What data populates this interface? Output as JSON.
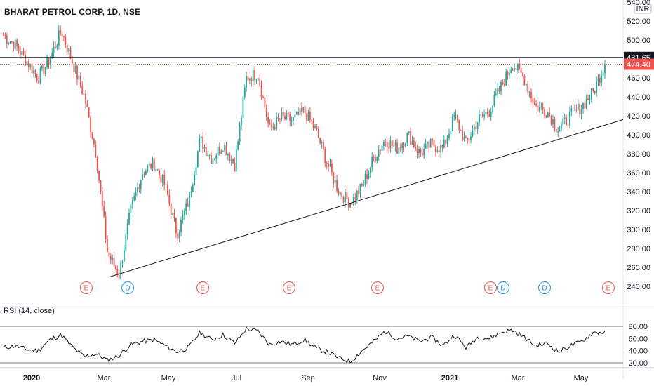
{
  "header": {
    "title": "BHARAT PETROL CORP, 1D, NSE",
    "currency": "INR"
  },
  "colors": {
    "up": "#26a69a",
    "down": "#ef5350",
    "resistance_line": "#131722",
    "trend_line": "#131722",
    "last_price_line": "#ef5350",
    "earnings": "#ef5350",
    "dividend": "#2196f3",
    "rsi_line": "#131722"
  },
  "chart_data": [
    {
      "type": "candlestick",
      "series_name": "BHARAT PETROL CORP",
      "x_ticks": [
        "2020",
        "Mar",
        "May",
        "Jul",
        "Sep",
        "Nov",
        "2021",
        "Mar",
        "May"
      ],
      "y_ticks": [
        "240.00",
        "260.00",
        "280.00",
        "300.00",
        "320.00",
        "340.00",
        "360.00",
        "380.00",
        "400.00",
        "420.00",
        "440.00",
        "460.00",
        "480.00",
        "500.00",
        "520.00",
        "540.00"
      ],
      "ylim": [
        233,
        541
      ],
      "ohlc_keypoints": [
        {
          "date": "Dec 2019",
          "close": 505
        },
        {
          "date": "early Jan 2020",
          "close": 495
        },
        {
          "date": "mid Jan 2020",
          "close": 478
        },
        {
          "date": "late Jan 2020",
          "close": 460
        },
        {
          "date": "early Feb 2020",
          "close": 480
        },
        {
          "date": "mid Feb 2020",
          "close": 510
        },
        {
          "date": "late Feb 2020",
          "close": 475
        },
        {
          "date": "early Mar 2020",
          "close": 440
        },
        {
          "date": "mid Mar 2020",
          "close": 380
        },
        {
          "date": "late Mar 2020",
          "close": 275
        },
        {
          "date": "end Mar 2020",
          "close": 252
        },
        {
          "date": "early Apr 2020",
          "close": 320
        },
        {
          "date": "mid Apr 2020",
          "close": 360
        },
        {
          "date": "late Apr 2020",
          "close": 370
        },
        {
          "date": "early May 2020",
          "close": 345
        },
        {
          "date": "mid May 2020",
          "close": 295
        },
        {
          "date": "late May 2020",
          "close": 330
        },
        {
          "date": "early Jun 2020",
          "close": 395
        },
        {
          "date": "mid Jun 2020",
          "close": 375
        },
        {
          "date": "late Jun 2020",
          "close": 390
        },
        {
          "date": "early Jul 2020",
          "close": 368
        },
        {
          "date": "mid Jul 2020",
          "close": 460
        },
        {
          "date": "late Jul 2020",
          "close": 465
        },
        {
          "date": "early Aug 2020",
          "close": 405
        },
        {
          "date": "mid Aug 2020",
          "close": 418
        },
        {
          "date": "late Aug 2020",
          "close": 415
        },
        {
          "date": "early Sep 2020",
          "close": 425
        },
        {
          "date": "mid Sep 2020",
          "close": 405
        },
        {
          "date": "late Sep 2020",
          "close": 370
        },
        {
          "date": "early Oct 2020",
          "close": 340
        },
        {
          "date": "mid Oct 2020",
          "close": 328
        },
        {
          "date": "late Oct 2020",
          "close": 345
        },
        {
          "date": "early Nov 2020",
          "close": 375
        },
        {
          "date": "mid Nov 2020",
          "close": 395
        },
        {
          "date": "late Nov 2020",
          "close": 385
        },
        {
          "date": "early Dec 2020",
          "close": 400
        },
        {
          "date": "mid Dec 2020",
          "close": 380
        },
        {
          "date": "late Dec 2020",
          "close": 390
        },
        {
          "date": "early Jan 2021",
          "close": 385
        },
        {
          "date": "mid Jan 2021",
          "close": 420
        },
        {
          "date": "late Jan 2021",
          "close": 390
        },
        {
          "date": "early Feb 2021",
          "close": 415
        },
        {
          "date": "mid Feb 2021",
          "close": 425
        },
        {
          "date": "late Feb 2021",
          "close": 450
        },
        {
          "date": "early Mar 2021",
          "close": 475
        },
        {
          "date": "mid Mar 2021",
          "close": 460
        },
        {
          "date": "late Mar 2021",
          "close": 430
        },
        {
          "date": "early Apr 2021",
          "close": 425
        },
        {
          "date": "mid Apr 2021",
          "close": 405
        },
        {
          "date": "late Apr 2021",
          "close": 420
        },
        {
          "date": "early May 2021",
          "close": 430
        },
        {
          "date": "mid May 2021",
          "close": 445
        },
        {
          "date": "late May 2021",
          "close": 474.4
        }
      ],
      "last_price": 474.4,
      "last_price_label": "474.40",
      "resistance_level": 481.65,
      "resistance_label": "481.65",
      "trendline": [
        {
          "date": "end Mar 2020",
          "value": 250
        },
        {
          "date": "late May 2021",
          "value": 416
        }
      ],
      "events": [
        {
          "date": "mid Feb 2020",
          "label": "E"
        },
        {
          "date": "end Mar 2020",
          "label": "D"
        },
        {
          "date": "late May 2020",
          "label": "E"
        },
        {
          "date": "mid Aug 2020",
          "label": "E"
        },
        {
          "date": "early Nov 2020",
          "label": "E"
        },
        {
          "date": "mid Feb 2021",
          "label": "E"
        },
        {
          "date": "late Feb 2021",
          "label": "D"
        },
        {
          "date": "mid Apr 2021",
          "label": "D"
        },
        {
          "date": "late May 2021",
          "label": "E"
        }
      ],
      "grid": false
    },
    {
      "type": "line",
      "title": "RSI (14, close)",
      "y_ticks": [
        "20.00",
        "40.00",
        "60.00",
        "80.00"
      ],
      "ylim": [
        14,
        86
      ],
      "bands": [
        20,
        80
      ],
      "rsi_keypoints": [
        {
          "date": "Dec 2019",
          "value": 45
        },
        {
          "date": "early Jan 2020",
          "value": 48
        },
        {
          "date": "mid Jan 2020",
          "value": 42
        },
        {
          "date": "late Jan 2020",
          "value": 40
        },
        {
          "date": "early Feb 2020",
          "value": 58
        },
        {
          "date": "mid Feb 2020",
          "value": 66
        },
        {
          "date": "late Feb 2020",
          "value": 45
        },
        {
          "date": "early Mar 2020",
          "value": 30
        },
        {
          "date": "mid Mar 2020",
          "value": 35
        },
        {
          "date": "late Mar 2020",
          "value": 24
        },
        {
          "date": "end Mar 2020",
          "value": 32
        },
        {
          "date": "early Apr 2020",
          "value": 50
        },
        {
          "date": "mid Apr 2020",
          "value": 55
        },
        {
          "date": "late Apr 2020",
          "value": 58
        },
        {
          "date": "early May 2020",
          "value": 48
        },
        {
          "date": "mid May 2020",
          "value": 38
        },
        {
          "date": "late May 2020",
          "value": 45
        },
        {
          "date": "early Jun 2020",
          "value": 70
        },
        {
          "date": "mid Jun 2020",
          "value": 58
        },
        {
          "date": "late Jun 2020",
          "value": 66
        },
        {
          "date": "early Jul 2020",
          "value": 52
        },
        {
          "date": "mid Jul 2020",
          "value": 76
        },
        {
          "date": "late Jul 2020",
          "value": 72
        },
        {
          "date": "early Aug 2020",
          "value": 50
        },
        {
          "date": "mid Aug 2020",
          "value": 55
        },
        {
          "date": "late Aug 2020",
          "value": 50
        },
        {
          "date": "early Sep 2020",
          "value": 58
        },
        {
          "date": "mid Sep 2020",
          "value": 44
        },
        {
          "date": "late Sep 2020",
          "value": 38
        },
        {
          "date": "early Oct 2020",
          "value": 28
        },
        {
          "date": "mid Oct 2020",
          "value": 22
        },
        {
          "date": "late Oct 2020",
          "value": 40
        },
        {
          "date": "early Nov 2020",
          "value": 55
        },
        {
          "date": "mid Nov 2020",
          "value": 72
        },
        {
          "date": "late Nov 2020",
          "value": 60
        },
        {
          "date": "early Dec 2020",
          "value": 64
        },
        {
          "date": "mid Dec 2020",
          "value": 55
        },
        {
          "date": "late Dec 2020",
          "value": 62
        },
        {
          "date": "early Jan 2021",
          "value": 48
        },
        {
          "date": "mid Jan 2021",
          "value": 66
        },
        {
          "date": "late Jan 2021",
          "value": 45
        },
        {
          "date": "early Feb 2021",
          "value": 62
        },
        {
          "date": "mid Feb 2021",
          "value": 60
        },
        {
          "date": "late Feb 2021",
          "value": 70
        },
        {
          "date": "early Mar 2021",
          "value": 74
        },
        {
          "date": "mid Mar 2021",
          "value": 62
        },
        {
          "date": "late Mar 2021",
          "value": 48
        },
        {
          "date": "early Apr 2021",
          "value": 52
        },
        {
          "date": "mid Apr 2021",
          "value": 38
        },
        {
          "date": "late Apr 2021",
          "value": 48
        },
        {
          "date": "early May 2021",
          "value": 55
        },
        {
          "date": "mid May 2021",
          "value": 70
        },
        {
          "date": "late May 2021",
          "value": 70
        }
      ]
    }
  ]
}
